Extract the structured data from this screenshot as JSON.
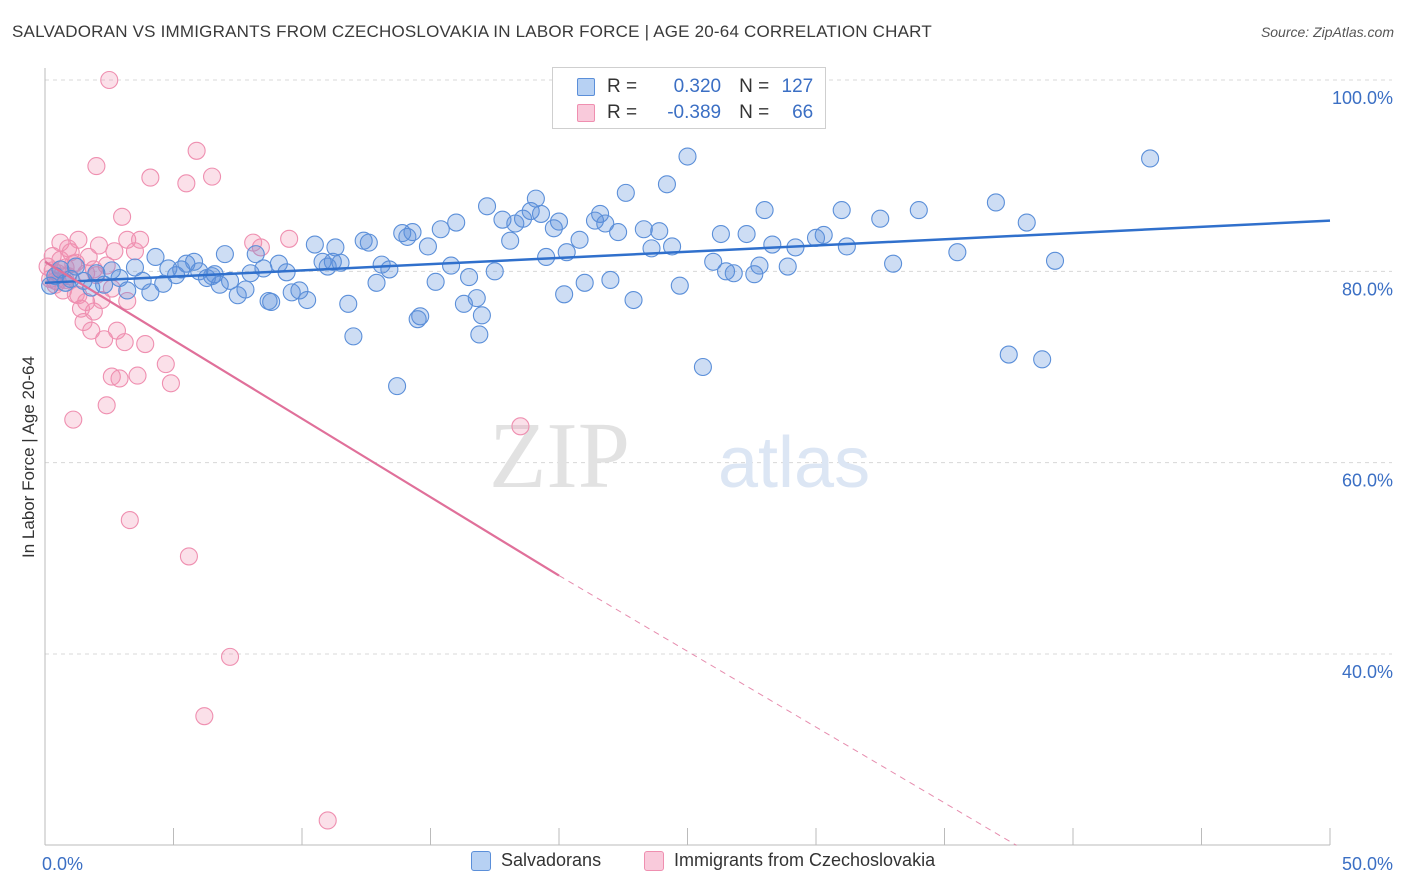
{
  "title": "SALVADORAN VS IMMIGRANTS FROM CZECHOSLOVAKIA IN LABOR FORCE | AGE 20-64 CORRELATION CHART",
  "source": "Source: ZipAtlas.com",
  "watermark": {
    "zip": "ZIP",
    "atlas": "atlas"
  },
  "legend": {
    "rows": [
      {
        "r_label": "R =",
        "r_value": "0.320",
        "n_label": "N =",
        "n_value": "127"
      },
      {
        "r_label": "R =",
        "r_value": "-0.389",
        "n_label": "N =",
        "n_value": "66"
      }
    ]
  },
  "bottom_legend": {
    "items": [
      "Salvadorans",
      "Immigrants from Czechoslovakia"
    ]
  },
  "chart_data": {
    "type": "scatter",
    "xlabel": "",
    "ylabel": "In Labor Force | Age 20-64",
    "xlim": [
      0,
      50
    ],
    "ylim": [
      20,
      102
    ],
    "x_tick_labels": [
      "0.0%",
      "50.0%"
    ],
    "y_tick_labels": [
      "40.0%",
      "60.0%",
      "80.0%",
      "100.0%"
    ],
    "y_ticks": [
      40,
      60,
      80,
      100
    ],
    "grid": "horizontal dashed",
    "legend_position": "top-center",
    "colors": {
      "salvadorans": "#5b8fd9",
      "czechoslovakia": "#ef8fb0",
      "blue_line": "#3070cc",
      "pink_line": "#e0709a",
      "tick_text": "#3b6fc4"
    },
    "series": [
      {
        "name": "Salvadorans",
        "r": 0.32,
        "n": 127,
        "trend": {
          "x": [
            0,
            50
          ],
          "y": [
            78.8,
            85.3
          ]
        },
        "points": [
          [
            0.2,
            78.5
          ],
          [
            0.4,
            79.5
          ],
          [
            0.6,
            80.2
          ],
          [
            0.8,
            78.8
          ],
          [
            1.0,
            79.2
          ],
          [
            1.2,
            80.5
          ],
          [
            1.5,
            79.0
          ],
          [
            1.8,
            78.3
          ],
          [
            2.0,
            79.8
          ],
          [
            2.3,
            78.6
          ],
          [
            2.6,
            80.1
          ],
          [
            2.9,
            79.3
          ],
          [
            3.2,
            78.0
          ],
          [
            3.5,
            80.4
          ],
          [
            3.8,
            79.0
          ],
          [
            4.1,
            77.8
          ],
          [
            4.3,
            81.5
          ],
          [
            4.6,
            78.7
          ],
          [
            4.8,
            80.3
          ],
          [
            5.1,
            79.6
          ],
          [
            5.3,
            80.2
          ],
          [
            5.5,
            80.8
          ],
          [
            5.8,
            81.0
          ],
          [
            6.0,
            80.0
          ],
          [
            6.3,
            79.3
          ],
          [
            6.6,
            79.7
          ],
          [
            6.8,
            78.6
          ],
          [
            7.0,
            81.8
          ],
          [
            7.2,
            79.0
          ],
          [
            7.5,
            77.5
          ],
          [
            7.8,
            78.1
          ],
          [
            8.0,
            79.8
          ],
          [
            8.2,
            81.8
          ],
          [
            8.5,
            80.3
          ],
          [
            8.8,
            76.8
          ],
          [
            9.1,
            80.8
          ],
          [
            9.4,
            79.9
          ],
          [
            9.6,
            77.8
          ],
          [
            9.9,
            78.0
          ],
          [
            10.2,
            77.0
          ],
          [
            10.5,
            82.8
          ],
          [
            10.8,
            81.0
          ],
          [
            11.0,
            80.5
          ],
          [
            11.2,
            81.0
          ],
          [
            11.5,
            80.9
          ],
          [
            11.8,
            76.6
          ],
          [
            12.0,
            73.2
          ],
          [
            12.4,
            83.2
          ],
          [
            12.6,
            83.0
          ],
          [
            12.9,
            78.8
          ],
          [
            13.1,
            80.7
          ],
          [
            13.4,
            80.2
          ],
          [
            13.7,
            68.0
          ],
          [
            13.9,
            84.0
          ],
          [
            14.1,
            83.6
          ],
          [
            14.3,
            84.1
          ],
          [
            14.6,
            75.3
          ],
          [
            14.9,
            82.6
          ],
          [
            15.2,
            78.9
          ],
          [
            15.4,
            84.4
          ],
          [
            15.8,
            80.6
          ],
          [
            16.0,
            85.1
          ],
          [
            16.3,
            76.6
          ],
          [
            16.5,
            79.4
          ],
          [
            16.9,
            73.4
          ],
          [
            17.0,
            75.4
          ],
          [
            17.2,
            86.8
          ],
          [
            17.5,
            80.0
          ],
          [
            17.8,
            85.4
          ],
          [
            18.1,
            83.2
          ],
          [
            18.3,
            85.0
          ],
          [
            18.6,
            85.5
          ],
          [
            18.9,
            86.3
          ],
          [
            19.1,
            87.6
          ],
          [
            19.3,
            86.0
          ],
          [
            19.5,
            81.5
          ],
          [
            20.0,
            85.2
          ],
          [
            20.2,
            77.6
          ],
          [
            20.3,
            82.0
          ],
          [
            20.8,
            83.3
          ],
          [
            21.0,
            78.8
          ],
          [
            21.4,
            85.3
          ],
          [
            21.6,
            86.0
          ],
          [
            22.0,
            79.1
          ],
          [
            22.3,
            84.1
          ],
          [
            22.6,
            88.2
          ],
          [
            22.9,
            77.0
          ],
          [
            23.3,
            84.4
          ],
          [
            23.6,
            82.4
          ],
          [
            23.9,
            84.2
          ],
          [
            24.2,
            89.1
          ],
          [
            24.4,
            82.6
          ],
          [
            24.7,
            78.5
          ],
          [
            25.6,
            70.0
          ],
          [
            25.0,
            92.0
          ],
          [
            26.0,
            81.0
          ],
          [
            26.3,
            83.9
          ],
          [
            26.5,
            80.0
          ],
          [
            26.8,
            79.8
          ],
          [
            27.3,
            83.9
          ],
          [
            27.6,
            79.7
          ],
          [
            27.8,
            80.6
          ],
          [
            28.0,
            86.4
          ],
          [
            28.3,
            82.8
          ],
          [
            29.2,
            82.5
          ],
          [
            30.3,
            83.8
          ],
          [
            31.0,
            86.4
          ],
          [
            31.2,
            82.6
          ],
          [
            32.5,
            85.5
          ],
          [
            33.0,
            80.8
          ],
          [
            34.0,
            86.4
          ],
          [
            35.5,
            82.0
          ],
          [
            37.0,
            87.2
          ],
          [
            37.5,
            71.3
          ],
          [
            38.2,
            85.1
          ],
          [
            38.8,
            70.8
          ],
          [
            39.3,
            81.1
          ],
          [
            43.0,
            91.8
          ],
          [
            30.0,
            83.5
          ],
          [
            28.9,
            80.5
          ],
          [
            21.8,
            85.0
          ],
          [
            19.8,
            84.5
          ],
          [
            14.5,
            75.0
          ],
          [
            16.8,
            77.2
          ],
          [
            11.3,
            82.5
          ],
          [
            8.7,
            76.9
          ],
          [
            6.5,
            79.5
          ]
        ]
      },
      {
        "name": "Immigrants from Czechoslovakia",
        "r": -0.389,
        "n": 66,
        "trend": {
          "x": [
            0,
            20
          ],
          "y": [
            81.0,
            48.2
          ]
        },
        "trend_dashed": {
          "x": [
            20,
            37.8
          ],
          "y": [
            48.2,
            20.0
          ]
        },
        "points": [
          [
            0.1,
            80.5
          ],
          [
            0.2,
            79.2
          ],
          [
            0.3,
            80.1
          ],
          [
            0.4,
            78.6
          ],
          [
            0.5,
            79.8
          ],
          [
            0.6,
            81.2
          ],
          [
            0.7,
            78.0
          ],
          [
            0.8,
            80.4
          ],
          [
            0.9,
            79.5
          ],
          [
            1.0,
            82.0
          ],
          [
            1.1,
            80.8
          ],
          [
            1.2,
            77.6
          ],
          [
            1.3,
            83.3
          ],
          [
            1.4,
            76.1
          ],
          [
            1.5,
            74.7
          ],
          [
            1.6,
            79.8
          ],
          [
            1.7,
            81.5
          ],
          [
            1.8,
            73.8
          ],
          [
            1.9,
            80.2
          ],
          [
            2.0,
            91.0
          ],
          [
            2.1,
            82.7
          ],
          [
            2.2,
            77.0
          ],
          [
            2.3,
            72.9
          ],
          [
            2.4,
            66.0
          ],
          [
            2.5,
            100.0
          ],
          [
            2.6,
            69.0
          ],
          [
            2.7,
            82.1
          ],
          [
            2.8,
            73.8
          ],
          [
            2.9,
            68.8
          ],
          [
            3.0,
            85.7
          ],
          [
            3.1,
            72.6
          ],
          [
            3.2,
            83.3
          ],
          [
            3.3,
            54.0
          ],
          [
            3.5,
            82.1
          ],
          [
            3.6,
            69.1
          ],
          [
            3.7,
            83.3
          ],
          [
            3.9,
            72.4
          ],
          [
            4.1,
            89.8
          ],
          [
            4.7,
            70.3
          ],
          [
            4.9,
            68.3
          ],
          [
            5.5,
            89.2
          ],
          [
            5.6,
            50.2
          ],
          [
            5.9,
            92.6
          ],
          [
            6.2,
            33.5
          ],
          [
            6.5,
            89.9
          ],
          [
            7.2,
            39.7
          ],
          [
            8.1,
            83.0
          ],
          [
            8.4,
            82.5
          ],
          [
            9.5,
            83.4
          ],
          [
            11.0,
            22.6
          ],
          [
            18.5,
            63.8
          ],
          [
            1.1,
            64.5
          ],
          [
            0.6,
            83.0
          ],
          [
            0.8,
            79.1
          ],
          [
            1.3,
            77.5
          ],
          [
            1.9,
            75.8
          ],
          [
            2.6,
            78.2
          ],
          [
            0.3,
            81.6
          ],
          [
            0.5,
            78.9
          ],
          [
            1.6,
            76.8
          ],
          [
            2.0,
            79.6
          ],
          [
            0.9,
            82.4
          ],
          [
            1.2,
            80.9
          ],
          [
            0.4,
            79.0
          ],
          [
            3.2,
            76.9
          ],
          [
            2.4,
            80.6
          ]
        ]
      }
    ]
  }
}
